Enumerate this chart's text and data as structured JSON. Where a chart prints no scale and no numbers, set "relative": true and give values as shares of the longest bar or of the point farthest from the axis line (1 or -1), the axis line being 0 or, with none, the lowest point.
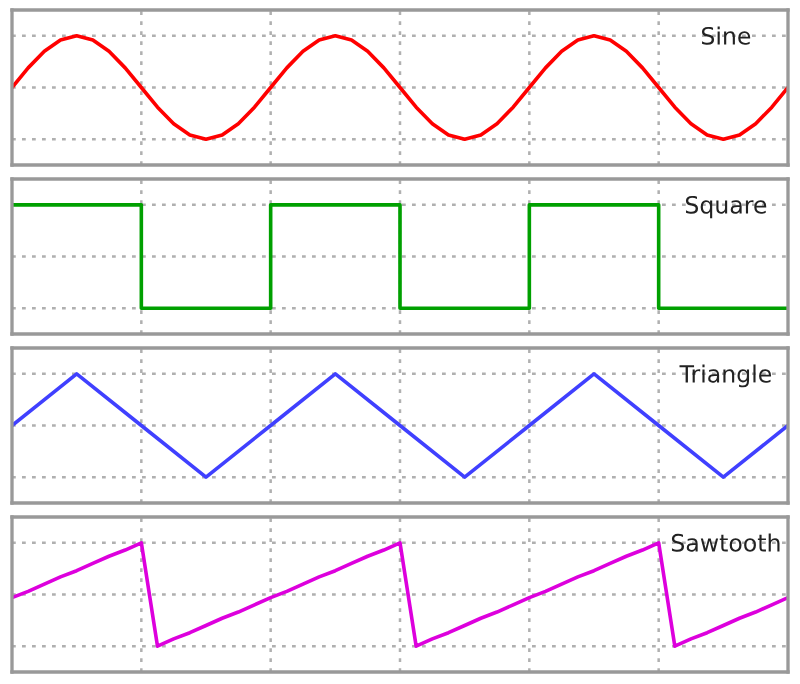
{
  "chart_data": [
    {
      "type": "line",
      "relative": true,
      "grid": true,
      "categories": [
        null,
        null,
        null,
        null,
        null,
        null,
        null,
        null,
        null,
        null,
        null,
        null,
        null,
        null,
        null,
        null,
        null,
        null,
        null,
        null,
        null,
        null,
        null,
        null,
        null,
        null,
        null,
        null,
        null,
        null,
        null,
        null,
        null,
        null,
        null,
        null,
        null,
        null,
        null,
        null,
        null,
        null,
        null,
        null,
        null,
        null,
        null,
        null,
        null
      ],
      "series": [
        {
          "name": "Sine",
          "color": "#ff0000",
          "values": [
            0.5,
            0.69,
            0.85,
            0.96,
            1,
            0.96,
            0.85,
            0.69,
            0.5,
            0.31,
            0.15,
            0.04,
            0,
            0.04,
            0.15,
            0.31,
            0.5,
            0.69,
            0.85,
            0.96,
            1,
            0.96,
            0.85,
            0.69,
            0.5,
            0.31,
            0.15,
            0.04,
            0,
            0.04,
            0.15,
            0.31,
            0.5,
            0.69,
            0.85,
            0.96,
            1,
            0.96,
            0.85,
            0.69,
            0.5,
            0.31,
            0.15,
            0.04,
            0,
            0.04,
            0.15,
            0.31,
            0.5
          ]
        }
      ]
    },
    {
      "type": "step",
      "relative": true,
      "grid": true,
      "categories": [
        null,
        null,
        null,
        null,
        null,
        null,
        null
      ],
      "series": [
        {
          "name": "Square",
          "color": "#00a000",
          "values": [
            1,
            0,
            1,
            0,
            1,
            0,
            0
          ]
        }
      ]
    },
    {
      "type": "line",
      "relative": true,
      "grid": true,
      "categories": [
        null,
        null,
        null,
        null,
        null,
        null,
        null,
        null,
        null,
        null,
        null,
        null,
        null
      ],
      "series": [
        {
          "name": "Triangle",
          "color": "#4040ff",
          "values": [
            0.5,
            1,
            0.5,
            0,
            0.5,
            1,
            0.5,
            0,
            0.5,
            1,
            0.5,
            0,
            0.5
          ]
        }
      ]
    },
    {
      "type": "line",
      "relative": true,
      "grid": true,
      "categories": [
        null,
        null,
        null,
        null,
        null,
        null,
        null,
        null,
        null,
        null,
        null,
        null,
        null,
        null,
        null,
        null,
        null,
        null,
        null,
        null,
        null,
        null,
        null,
        null,
        null,
        null,
        null,
        null,
        null,
        null,
        null,
        null,
        null,
        null,
        null,
        null,
        null,
        null,
        null,
        null,
        null,
        null,
        null,
        null,
        null,
        null,
        null,
        null,
        null
      ],
      "series": [
        {
          "name": "Sawtooth",
          "color": "#dd00dd",
          "values": [
            0.47,
            0.53,
            0.6,
            0.67,
            0.73,
            0.8,
            0.87,
            0.93,
            1,
            0,
            0.07,
            0.13,
            0.2,
            0.27,
            0.33,
            0.4,
            0.47,
            0.53,
            0.6,
            0.67,
            0.73,
            0.8,
            0.87,
            0.93,
            1,
            0,
            0.07,
            0.13,
            0.2,
            0.27,
            0.33,
            0.4,
            0.47,
            0.53,
            0.6,
            0.67,
            0.73,
            0.8,
            0.87,
            0.93,
            1,
            0,
            0.07,
            0.13,
            0.2,
            0.27,
            0.33,
            0.4,
            0.47
          ]
        }
      ]
    }
  ]
}
